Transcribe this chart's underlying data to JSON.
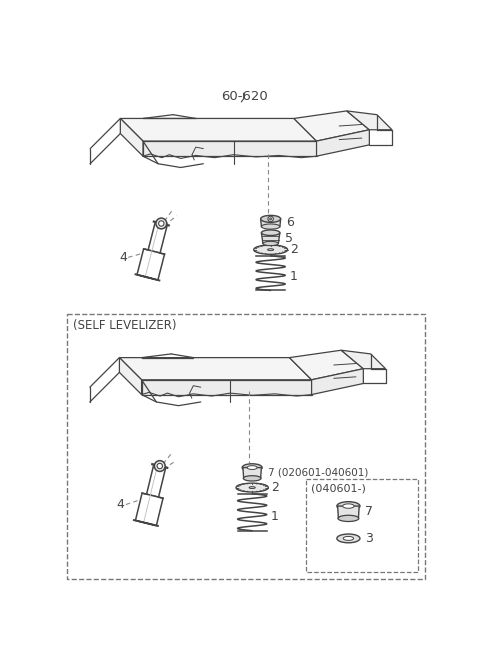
{
  "bg_color": "#ffffff",
  "lc": "#444444",
  "mg": "#888888",
  "title": "60-620",
  "section2_label": "(SELF LEVELIZER)",
  "inset_label": "(040601-)",
  "part_labels": {
    "1": "1",
    "2": "2",
    "3": "3",
    "4": "4",
    "5": "5",
    "6": "6",
    "7_top": "7 (020601-040601)",
    "7_inset": "7",
    "3_inset": "3"
  },
  "dash_color": "#777777"
}
